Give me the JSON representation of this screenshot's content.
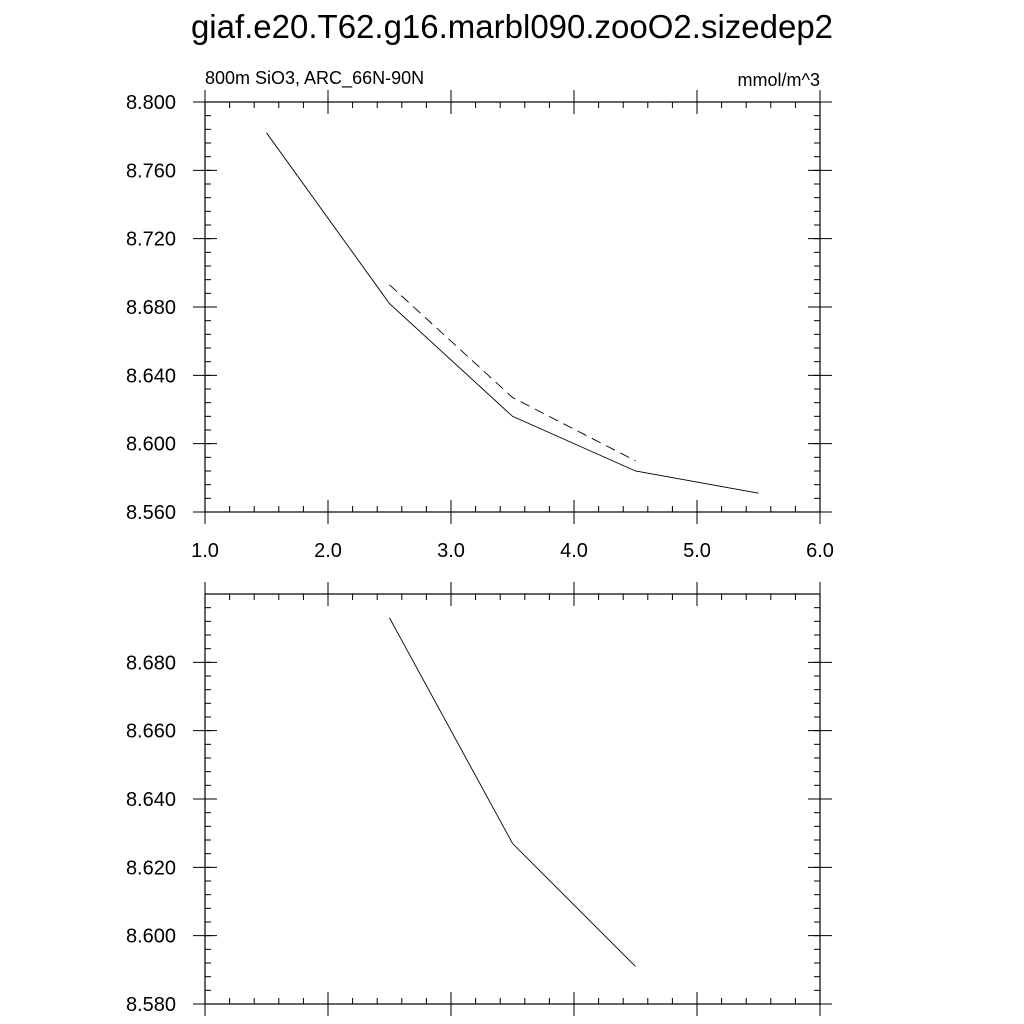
{
  "title": "giaf.e20.T62.g16.marbl090.zooO2.sizedep2",
  "chart_data": [
    {
      "type": "line",
      "subtitle_left": "800m SiO3, ARC_66N-90N",
      "subtitle_right": "mmol/m^3",
      "xlim": [
        1.0,
        6.0
      ],
      "ylim": [
        8.56,
        8.8
      ],
      "xticks": [
        1.0,
        2.0,
        3.0,
        4.0,
        5.0,
        6.0
      ],
      "xtick_labels": [
        "1.0",
        "2.0",
        "3.0",
        "4.0",
        "5.0",
        "6.0"
      ],
      "yticks": [
        8.56,
        8.6,
        8.64,
        8.68,
        8.72,
        8.76,
        8.8
      ],
      "ytick_labels": [
        "8.560",
        "8.600",
        "8.640",
        "8.680",
        "8.720",
        "8.760",
        "8.800"
      ],
      "grid": false,
      "series": [
        {
          "style": "solid",
          "x": [
            1.5,
            2.5,
            3.5,
            4.5,
            5.5
          ],
          "y": [
            8.782,
            8.682,
            8.616,
            8.584,
            8.571
          ]
        },
        {
          "style": "dashed",
          "x": [
            2.5,
            3.5,
            4.5
          ],
          "y": [
            8.693,
            8.627,
            8.59
          ]
        }
      ]
    },
    {
      "type": "line",
      "xlim": [
        1.0,
        6.0
      ],
      "ylim": [
        8.58,
        8.7
      ],
      "xticks": [
        1.0,
        2.0,
        3.0,
        4.0,
        5.0,
        6.0
      ],
      "yticks": [
        8.58,
        8.6,
        8.62,
        8.64,
        8.66,
        8.68
      ],
      "ytick_labels": [
        "8.580",
        "8.600",
        "8.620",
        "8.640",
        "8.660",
        "8.680"
      ],
      "grid": false,
      "series": [
        {
          "style": "solid",
          "x": [
            2.5,
            3.5,
            4.5
          ],
          "y": [
            8.693,
            8.627,
            8.591
          ]
        }
      ]
    }
  ]
}
